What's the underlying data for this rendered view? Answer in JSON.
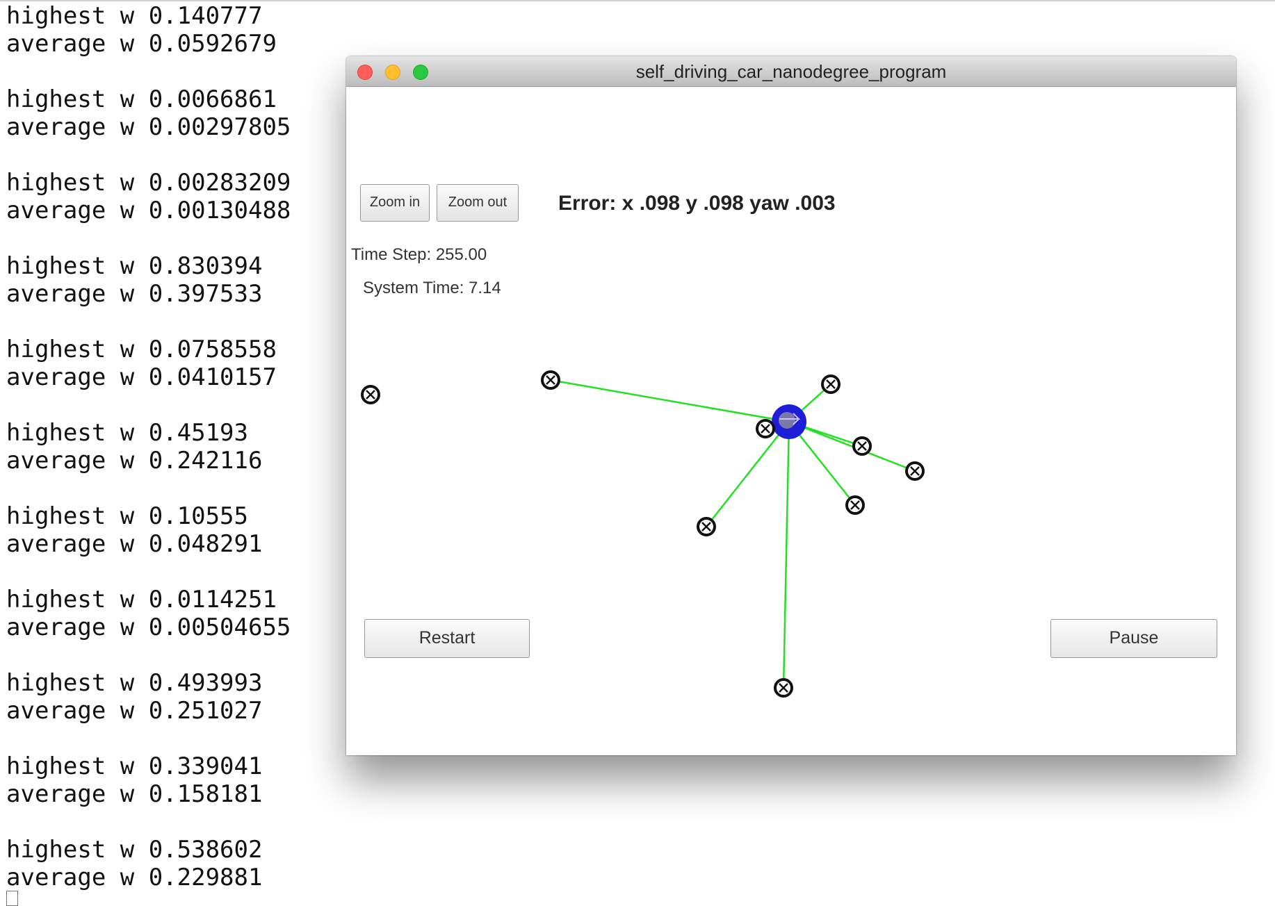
{
  "terminal": {
    "lines": [
      "highest w 0.140777",
      "average w 0.0592679",
      "highest w 0.0066861",
      "average w 0.00297805",
      "highest w 0.00283209",
      "average w 0.00130488",
      "highest w 0.830394",
      "average w 0.397533",
      "highest w 0.0758558",
      "average w 0.0410157",
      "highest w 0.45193",
      "average w 0.242116",
      "highest w 0.10555",
      "average w 0.048291",
      "highest w 0.0114251",
      "average w 0.00504655",
      "highest w 0.493993",
      "average w 0.251027",
      "highest w 0.339041",
      "average w 0.158181",
      "highest w 0.538602",
      "average w 0.229881"
    ]
  },
  "window": {
    "title": "self_driving_car_nanodegree_program",
    "zoom_in_label": "Zoom in",
    "zoom_out_label": "Zoom out",
    "error_text": "Error: x .098 y .098 yaw .003",
    "time_step_text": "Time Step: 255.00",
    "system_time_text": "System Time: 7.14",
    "restart_label": "Restart",
    "pause_label": "Pause"
  },
  "colors": {
    "car": "#1e1ed8",
    "observation_line": "#22e022",
    "landmark": "#111111"
  },
  "icons": {
    "landmark": "circled-x-icon",
    "car": "car-marker-icon"
  }
}
